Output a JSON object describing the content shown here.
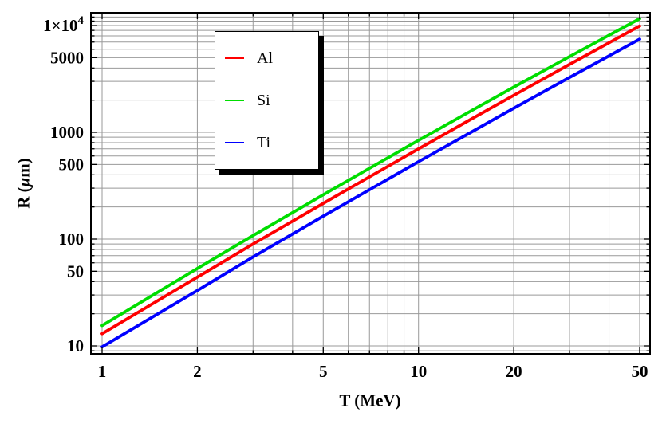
{
  "chart_data": {
    "type": "line",
    "title": "",
    "xlabel": "T (MeV)",
    "ylabel": "R (μm)",
    "ylabel_parts": {
      "prefix": "R (",
      "mu": "μ",
      "suffix": "m)"
    },
    "xscale": "log",
    "yscale": "log",
    "xlim": [
      0.92,
      54
    ],
    "ylim": [
      8.4,
      13200
    ],
    "grid": true,
    "grid_color": "#999999",
    "frame_color": "#000000",
    "x": [
      1,
      2,
      3,
      5,
      7,
      10,
      15,
      20,
      30,
      50
    ],
    "series": [
      {
        "name": "Al",
        "color": "#ff0000",
        "values": [
          13,
          44,
          90,
          216,
          383,
          700,
          1380,
          2220,
          4320,
          9900
        ]
      },
      {
        "name": "Si",
        "color": "#00dd00",
        "values": [
          15.5,
          53,
          108,
          260,
          461,
          840,
          1650,
          2650,
          5120,
          11600
        ]
      },
      {
        "name": "Ti",
        "color": "#0000ff",
        "values": [
          9.8,
          33,
          68,
          164,
          290,
          530,
          1040,
          1680,
          3260,
          7450
        ]
      }
    ],
    "xticks": {
      "values": [
        1,
        2,
        5,
        10,
        20,
        50
      ],
      "labels": [
        "1",
        "2",
        "5",
        "10",
        "20",
        "50"
      ],
      "minor": [
        3,
        4,
        6,
        7,
        8,
        9,
        30,
        40
      ]
    },
    "yticks": {
      "values": [
        10,
        50,
        100,
        500,
        1000,
        5000,
        10000
      ],
      "labels": [
        "10",
        "50",
        "100",
        "500",
        "1000",
        "5000",
        "1×10^4"
      ],
      "minor": [
        9,
        20,
        30,
        40,
        60,
        70,
        80,
        90,
        200,
        300,
        400,
        600,
        700,
        800,
        900,
        2000,
        3000,
        4000,
        6000,
        7000,
        8000,
        9000,
        11000,
        12000,
        13000
      ]
    },
    "legend": {
      "position": "upper-left-inset",
      "entries": [
        {
          "label": "Al",
          "color": "#ff0000"
        },
        {
          "label": "Si",
          "color": "#00dd00"
        },
        {
          "label": "Ti",
          "color": "#0000ff"
        }
      ]
    }
  }
}
